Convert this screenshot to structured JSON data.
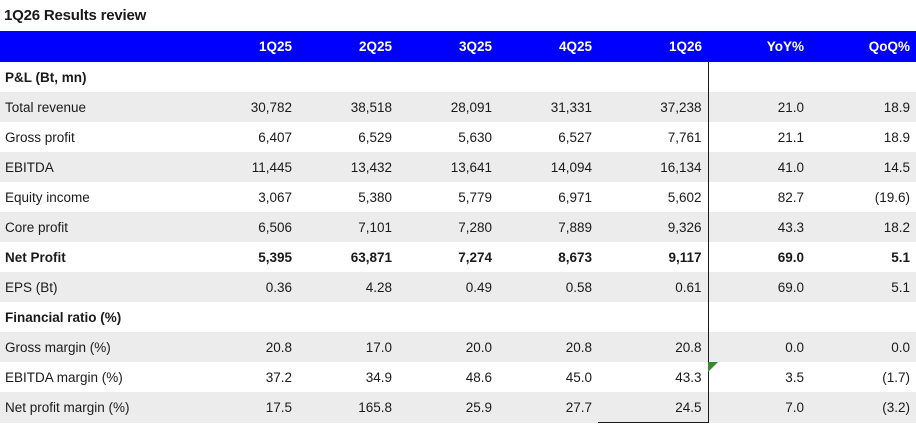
{
  "title": "1Q26 Results review",
  "header": [
    "",
    "1Q25",
    "2Q25",
    "3Q25",
    "4Q25",
    "1Q26",
    "YoY%",
    "QoQ%"
  ],
  "sections": [
    {
      "heading": "P&L (Bt, mn)",
      "rows": [
        {
          "label": "Total revenue",
          "values": [
            "30,782",
            "38,518",
            "28,091",
            "31,331",
            "37,238",
            "21.0",
            "18.9"
          ],
          "bold": false
        },
        {
          "label": "Gross profit",
          "values": [
            "6,407",
            "6,529",
            "5,630",
            "6,527",
            "7,761",
            "21.1",
            "18.9"
          ],
          "bold": false
        },
        {
          "label": "EBITDA",
          "values": [
            "11,445",
            "13,432",
            "13,641",
            "14,094",
            "16,134",
            "41.0",
            "14.5"
          ],
          "bold": false
        },
        {
          "label": "Equity income",
          "values": [
            "3,067",
            "5,380",
            "5,779",
            "6,971",
            "5,602",
            "82.7",
            "(19.6)"
          ],
          "bold": false
        },
        {
          "label": "Core profit",
          "values": [
            "6,506",
            "7,101",
            "7,280",
            "7,889",
            "9,326",
            "43.3",
            "18.2"
          ],
          "bold": false
        },
        {
          "label": "Net Profit",
          "values": [
            "5,395",
            "63,871",
            "7,274",
            "8,673",
            "9,117",
            "69.0",
            "5.1"
          ],
          "bold": true
        },
        {
          "label": "EPS (Bt)",
          "values": [
            "0.36",
            "4.28",
            "0.49",
            "0.58",
            "0.61",
            "69.0",
            "5.1"
          ],
          "bold": false
        }
      ]
    },
    {
      "heading": "Financial ratio (%)",
      "rows": [
        {
          "label": "Gross margin (%)",
          "values": [
            "20.8",
            "17.0",
            "20.0",
            "20.8",
            "20.8",
            "0.0",
            "0.0"
          ],
          "bold": false
        },
        {
          "label": "EBITDA margin (%)",
          "values": [
            "37.2",
            "34.9",
            "48.6",
            "45.0",
            "43.3",
            "3.5",
            "(1.7)"
          ],
          "bold": false
        },
        {
          "label": "Net profit margin (%)",
          "values": [
            "17.5",
            "165.8",
            "25.9",
            "27.7",
            "24.5",
            "7.0",
            "(3.2)"
          ],
          "bold": false
        }
      ]
    }
  ],
  "colors": {
    "header_bg": "#0000ff",
    "header_text": "#ffffff",
    "band": "#ececec",
    "comment_marker": "#2e8b2e"
  }
}
